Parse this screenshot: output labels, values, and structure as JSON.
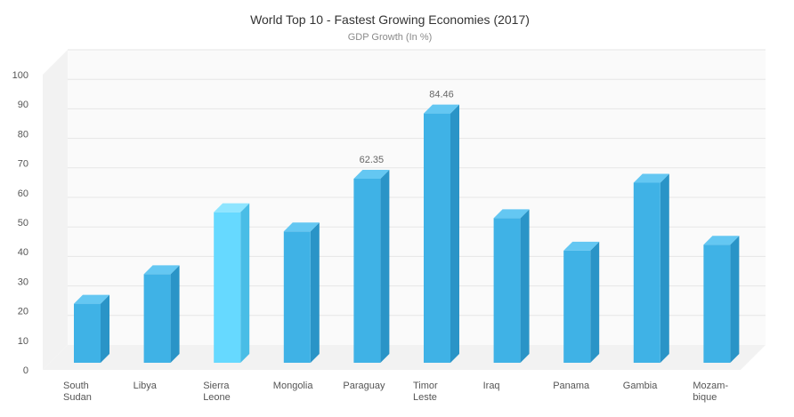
{
  "chart_data": {
    "type": "bar",
    "title": "World Top 10 - Fastest Growing Economies (2017)",
    "subtitle": "GDP Growth (In %)",
    "xlabel": "",
    "ylabel": "",
    "ylim": [
      0,
      100
    ],
    "yticks": [
      0,
      10,
      20,
      30,
      40,
      50,
      60,
      70,
      80,
      90,
      100
    ],
    "categories": [
      [
        "South",
        "Sudan"
      ],
      [
        "Libya"
      ],
      [
        "Sierra",
        "Leone"
      ],
      [
        "Mongolia"
      ],
      [
        "Paraguay"
      ],
      [
        "Timor",
        "Leste"
      ],
      [
        "Iraq"
      ],
      [
        "Panama"
      ],
      [
        "Gambia"
      ],
      [
        "Mozam-",
        "bique"
      ]
    ],
    "values": [
      20,
      30,
      51,
      44.5,
      62.35,
      84.46,
      49,
      38,
      61,
      40
    ],
    "data_labels": [
      "",
      "",
      "",
      "",
      "62.35",
      "84.46",
      "",
      "",
      "",
      ""
    ],
    "highlight_index": 2,
    "grid": true,
    "legend": "none",
    "colors": {
      "bar_front": "#3fb2e6",
      "bar_side": "#2a94c7",
      "bar_top": "#64c7f2",
      "highlight_front": "#66d9ff",
      "highlight_side": "#49bde6",
      "highlight_top": "#8fe5ff",
      "wall": "#f2f2f2",
      "floor": "#f2f2f2"
    }
  }
}
